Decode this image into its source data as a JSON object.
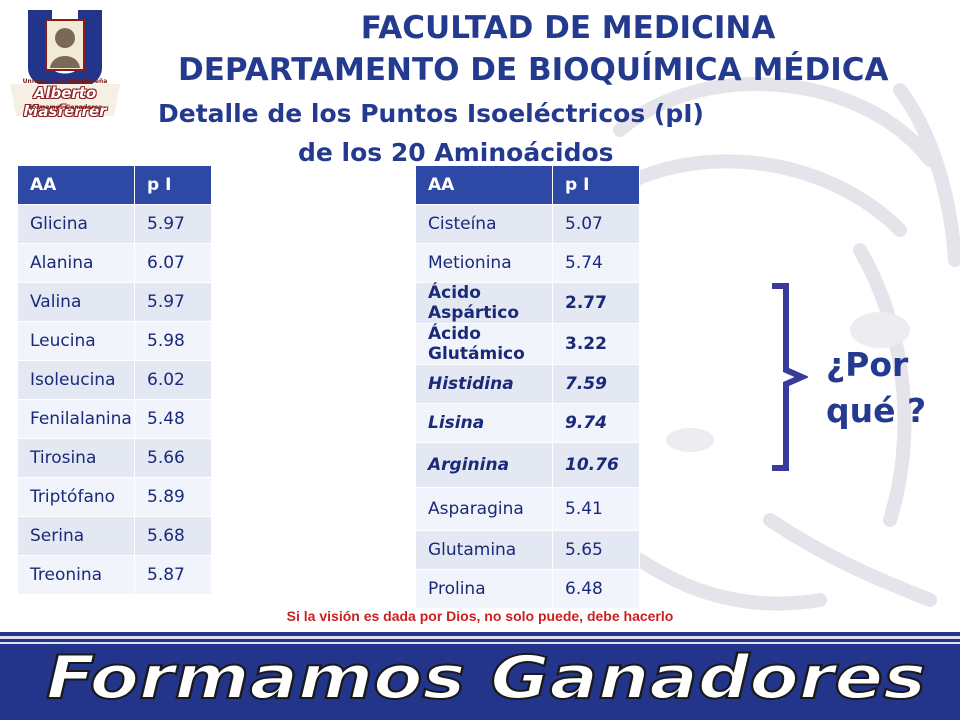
{
  "header": {
    "faculty": "FACULTAD DE MEDICINA",
    "department": "DEPARTAMENTO DE BIOQUÍMICA MÉDICA",
    "title_line1": "Detalle de los Puntos Isoeléctricos (pI)",
    "title_line2": "de los 20 Aminoácidos"
  },
  "logo": {
    "line1": "Universidad Salvadoreña",
    "line2": "Alberto Masferrer",
    "line3": "Formamos Ganadores",
    "icon": "university-logo-icon"
  },
  "table_left": {
    "headers": [
      "AA",
      "p I"
    ],
    "rows": [
      {
        "aa": "Glicina",
        "pi": "5.97"
      },
      {
        "aa": "Alanina",
        "pi": "6.07"
      },
      {
        "aa": "Valina",
        "pi": "5.97"
      },
      {
        "aa": "Leucina",
        "pi": "5.98"
      },
      {
        "aa": "Isoleucina",
        "pi": "6.02"
      },
      {
        "aa": "Fenilalanina",
        "pi": "5.48"
      },
      {
        "aa": "Tirosina",
        "pi": "5.66"
      },
      {
        "aa": "Triptófano",
        "pi": "5.89"
      },
      {
        "aa": "Serina",
        "pi": "5.68"
      },
      {
        "aa": "Treonina",
        "pi": "5.87"
      }
    ]
  },
  "table_right": {
    "headers": [
      "AA",
      "p I"
    ],
    "rows": [
      {
        "aa": "Cisteína",
        "pi": "5.07"
      },
      {
        "aa": "Metionina",
        "pi": "5.74"
      },
      {
        "aa": "Ácido Aspártico",
        "pi": "2.77"
      },
      {
        "aa": "Ácido Glutámico",
        "pi": "3.22"
      },
      {
        "aa": "Histidina",
        "pi": "7.59"
      },
      {
        "aa": "Lisina",
        "pi": "9.74"
      },
      {
        "aa": "Arginina",
        "pi": "10.76"
      },
      {
        "aa": "Asparagina",
        "pi": "5.41"
      },
      {
        "aa": "Glutamina",
        "pi": "5.65"
      },
      {
        "aa": "Prolina",
        "pi": "6.48"
      }
    ]
  },
  "question": {
    "line1": "¿Por",
    "line2": "qué ?"
  },
  "motto": "Si la visión es dada por Dios, no solo puede, debe hacerlo",
  "footer": {
    "slogan": "Formamos Ganadores"
  },
  "colors": {
    "title_blue": "#243a8f",
    "header_blue": "#2e48a6",
    "row_light": "#e3e8f3",
    "motto_red": "#cc1f1f",
    "footer_blue": "#23358a"
  }
}
